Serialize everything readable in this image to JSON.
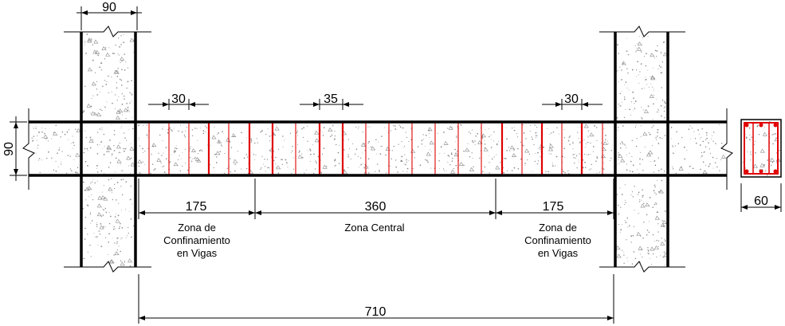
{
  "dimensions": {
    "column_width": "90",
    "beam_height": "90",
    "spacing_left": "30",
    "spacing_center": "35",
    "spacing_right": "30",
    "zone_left_length": "175",
    "zone_center_length": "360",
    "zone_right_length": "175",
    "total_span": "710",
    "section_width": "60"
  },
  "zones": {
    "left": {
      "line1": "Zona de",
      "line2": "Confinamiento",
      "line3": "en Vigas"
    },
    "center": {
      "label": "Zona Central"
    },
    "right": {
      "line1": "Zona de",
      "line2": "Confinamiento",
      "line3": "en Vigas"
    }
  },
  "colors": {
    "stirrup": "#e00000",
    "outline": "#000000",
    "concrete_speckle": "#8a8a8a"
  }
}
